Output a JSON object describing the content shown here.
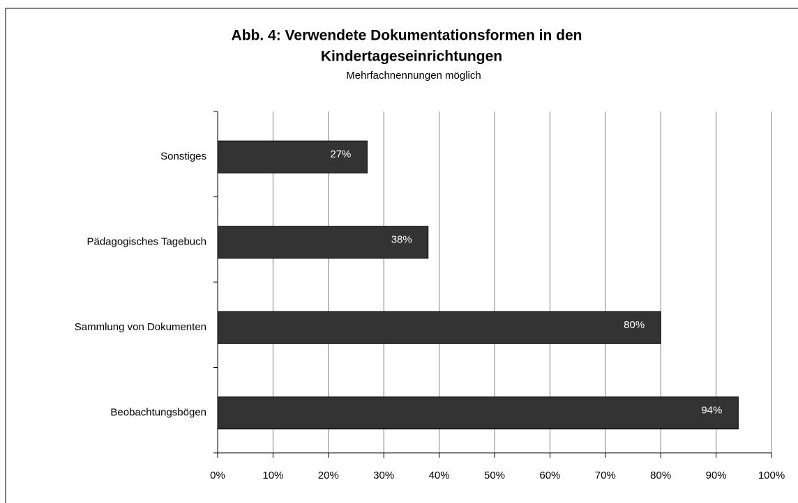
{
  "chart_data": {
    "type": "bar",
    "orientation": "horizontal",
    "title": "Abb. 4: Verwendete Dokumentationsformen in den",
    "title_line2": "Kindertageseinrichtungen",
    "subtitle": "Mehrfachnennungen möglich",
    "categories": [
      "Sonstiges",
      "Pädagogisches Tagebuch",
      "Sammlung von Dokumenten",
      "Beobachtungsbögen"
    ],
    "values": [
      27,
      38,
      80,
      94
    ],
    "value_labels": [
      "27%",
      "38%",
      "80%",
      "94%"
    ],
    "color": "#333333",
    "xlim": [
      0,
      100
    ],
    "xticks": [
      {
        "value": 0,
        "label": "0%"
      },
      {
        "value": 10,
        "label": "10%"
      },
      {
        "value": 20,
        "label": "20%"
      },
      {
        "value": 30,
        "label": "30%"
      },
      {
        "value": 40,
        "label": "40%"
      },
      {
        "value": 50,
        "label": "50%"
      },
      {
        "value": 60,
        "label": "60%"
      },
      {
        "value": 70,
        "label": "70%"
      },
      {
        "value": 80,
        "label": "80%"
      },
      {
        "value": 90,
        "label": "90%"
      },
      {
        "value": 100,
        "label": "100%"
      }
    ],
    "grid": true
  }
}
